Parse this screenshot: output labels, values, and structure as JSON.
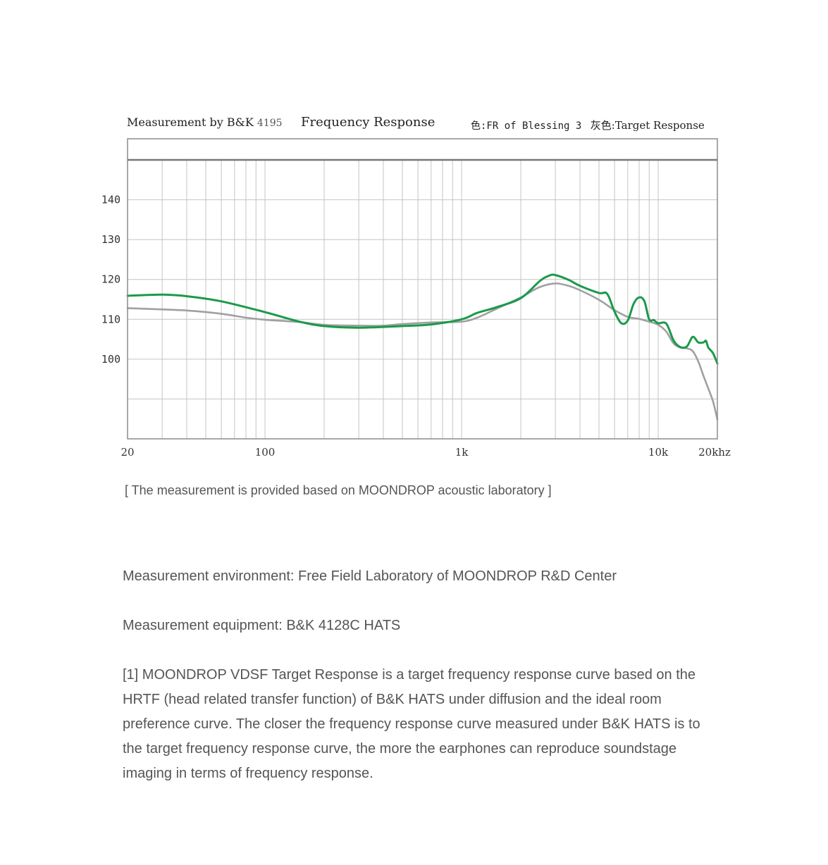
{
  "chart_data": {
    "type": "line",
    "title": "Frequency Response",
    "measurement_label": "Measurement by B&K",
    "measurement_model": "4195",
    "legend": {
      "green_label": "色:FR of Blessing 3",
      "gray_label": "灰色:Target Response"
    },
    "x_scale": "log",
    "xlim": [
      20,
      20000
    ],
    "ylim": [
      80,
      150
    ],
    "x_ticks": [
      {
        "value": 20,
        "label": "20"
      },
      {
        "value": 100,
        "label": "100"
      },
      {
        "value": 1000,
        "label": "1k"
      },
      {
        "value": 10000,
        "label": "10k"
      },
      {
        "value": 20000,
        "label": "20khz"
      }
    ],
    "y_ticks": [
      {
        "value": 140,
        "label": "140"
      },
      {
        "value": 130,
        "label": "130"
      },
      {
        "value": 120,
        "label": "120"
      },
      {
        "value": 110,
        "label": "110"
      },
      {
        "value": 100,
        "label": "100"
      }
    ],
    "grid": true,
    "series": [
      {
        "name": "FR of Blessing 3",
        "color": "#1a9a4a",
        "x": [
          20,
          30,
          40,
          60,
          100,
          150,
          200,
          300,
          500,
          700,
          1000,
          1200,
          1500,
          2000,
          2500,
          2800,
          3000,
          3500,
          4000,
          5000,
          5500,
          6000,
          6500,
          7000,
          7500,
          8000,
          8500,
          9000,
          9500,
          10000,
          11000,
          12000,
          13000,
          14000,
          15000,
          16000,
          17000,
          17500,
          18000,
          19000,
          20000
        ],
        "values": [
          115.9,
          116.2,
          115.8,
          114.5,
          111.8,
          109.4,
          108.3,
          107.9,
          108.3,
          108.7,
          110.0,
          111.6,
          113.0,
          115.3,
          119.6,
          121.0,
          121.1,
          119.9,
          118.4,
          116.6,
          116.4,
          111.9,
          109.0,
          109.7,
          113.9,
          115.5,
          114.6,
          110.0,
          109.8,
          109.0,
          108.9,
          104.6,
          103.0,
          103.2,
          105.6,
          104.2,
          104.2,
          104.6,
          102.9,
          101.5,
          98.9
        ]
      },
      {
        "name": "Target Response",
        "color": "#a0a0a0",
        "x": [
          20,
          40,
          60,
          80,
          100,
          150,
          200,
          300,
          400,
          500,
          700,
          1000,
          1200,
          1500,
          2000,
          2500,
          3000,
          3500,
          4000,
          5000,
          6000,
          7000,
          8000,
          9000,
          10000,
          11000,
          12000,
          13000,
          14000,
          15000,
          16000,
          17000,
          18000,
          19000,
          20000
        ],
        "values": [
          112.8,
          112.2,
          111.4,
          110.4,
          109.9,
          109.3,
          108.6,
          108.4,
          108.4,
          108.8,
          109.2,
          109.4,
          110.4,
          112.6,
          115.5,
          118.1,
          119.0,
          118.4,
          117.3,
          114.9,
          112.3,
          110.6,
          110.1,
          109.4,
          108.6,
          106.9,
          103.9,
          102.9,
          102.7,
          102.0,
          99.4,
          95.8,
          92.6,
          89.4,
          84.9
        ]
      }
    ]
  },
  "footer_note": "[ The measurement is provided based on MOONDROP acoustic laboratory ]",
  "text": {
    "environment": "Measurement environment: Free Field Laboratory of MOONDROP R&D Center",
    "equipment": "Measurement equipment: B&K 4128C HATS",
    "description": "[1] MOONDROP VDSF Target Response is a target frequency response curve based on the HRTF (head related transfer function) of B&K HATS under diffusion and the ideal room preference curve. The closer the frequency response curve measured under B&K HATS is to the target frequency response curve, the more the earphones can reproduce soundstage imaging in terms of frequency response."
  }
}
